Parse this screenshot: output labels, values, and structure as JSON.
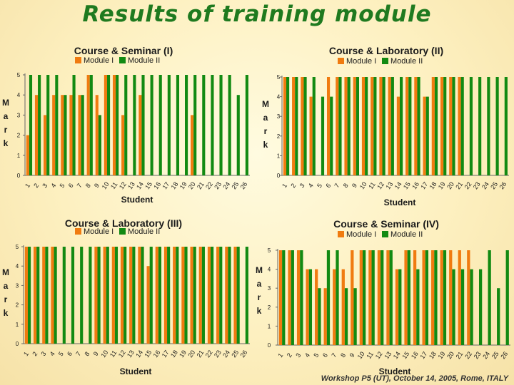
{
  "page": {
    "title": "Results of training module",
    "footer": "Workshop P5 (UT), October 14, 2005, Rome, ITALY"
  },
  "colors": {
    "module1": "#f07b10",
    "module2": "#128a12",
    "axis": "#666666",
    "text": "#1a1a1a"
  },
  "chart_data": [
    {
      "type": "bar",
      "title": "Course & Seminar (I)",
      "xlabel": "Student",
      "ylabel": "M a r k",
      "ylim": [
        0,
        5
      ],
      "yticks": [
        0,
        1,
        2,
        3,
        4,
        5
      ],
      "categories": [
        "1",
        "2",
        "3",
        "4",
        "5",
        "6",
        "7",
        "8",
        "9",
        "10",
        "11",
        "12",
        "13",
        "14",
        "15",
        "16",
        "17",
        "18",
        "19",
        "20",
        "21",
        "22",
        "23",
        "24",
        "25",
        "26"
      ],
      "legend": "top",
      "series": [
        {
          "name": "Module I",
          "values": [
            2,
            4,
            3,
            4,
            4,
            4,
            4,
            5,
            4,
            5,
            5,
            3,
            0,
            4,
            0,
            0,
            0,
            0,
            0,
            3,
            0,
            0,
            0,
            0,
            0,
            0
          ]
        },
        {
          "name": "Module II",
          "values": [
            5,
            5,
            5,
            5,
            4,
            5,
            4,
            5,
            3,
            5,
            5,
            5,
            5,
            5,
            5,
            5,
            5,
            5,
            5,
            5,
            5,
            5,
            5,
            5,
            4,
            5
          ]
        }
      ]
    },
    {
      "type": "bar",
      "title": "Course & Laboratory (II)",
      "xlabel": "Student",
      "ylabel": "M a r k",
      "ylim": [
        0,
        5
      ],
      "yticks": [
        0,
        1,
        2,
        3,
        4,
        5
      ],
      "categories": [
        "1",
        "2",
        "3",
        "4",
        "5",
        "6",
        "7",
        "8",
        "9",
        "10",
        "11",
        "12",
        "13",
        "14",
        "15",
        "16",
        "17",
        "18",
        "19",
        "20",
        "21",
        "22",
        "23",
        "24",
        "25",
        "26"
      ],
      "legend": "top",
      "series": [
        {
          "name": "Module I",
          "values": [
            5,
            5,
            5,
            4,
            0,
            5,
            5,
            5,
            5,
            5,
            5,
            5,
            5,
            4,
            5,
            5,
            4,
            5,
            5,
            5,
            5,
            0,
            0,
            0,
            0,
            0
          ]
        },
        {
          "name": "Module II",
          "values": [
            5,
            5,
            5,
            5,
            4,
            4,
            5,
            5,
            5,
            5,
            5,
            5,
            5,
            5,
            5,
            5,
            4,
            5,
            5,
            5,
            5,
            5,
            5,
            5,
            5,
            5
          ]
        }
      ]
    },
    {
      "type": "bar",
      "title": "Course & Laboratory (III)",
      "xlabel": "Student",
      "ylabel": "M a r k",
      "ylim": [
        0,
        5
      ],
      "yticks": [
        0,
        1,
        2,
        3,
        4,
        5
      ],
      "categories": [
        "1",
        "2",
        "3",
        "4",
        "5",
        "6",
        "7",
        "8",
        "9",
        "10",
        "11",
        "12",
        "13",
        "14",
        "15",
        "16",
        "17",
        "18",
        "19",
        "20",
        "21",
        "22",
        "23",
        "24",
        "25",
        "26"
      ],
      "legend": "top",
      "series": [
        {
          "name": "Module I",
          "values": [
            5,
            5,
            5,
            5,
            0,
            0,
            0,
            0,
            5,
            5,
            5,
            5,
            5,
            5,
            4,
            5,
            5,
            5,
            5,
            5,
            5,
            5,
            5,
            5,
            5,
            0
          ]
        },
        {
          "name": "Module II",
          "values": [
            5,
            5,
            5,
            5,
            5,
            5,
            5,
            5,
            5,
            5,
            5,
            5,
            5,
            5,
            5,
            5,
            5,
            5,
            5,
            5,
            5,
            5,
            5,
            5,
            5,
            5
          ]
        }
      ]
    },
    {
      "type": "bar",
      "title": "Course & Seminar (IV)",
      "xlabel": "Student",
      "ylabel": "M a r k",
      "ylim": [
        0,
        5
      ],
      "yticks": [
        0,
        1,
        2,
        3,
        4,
        5
      ],
      "categories": [
        "1",
        "2",
        "3",
        "4",
        "5",
        "6",
        "7",
        "8",
        "9",
        "10",
        "11",
        "12",
        "13",
        "14",
        "15",
        "16",
        "17",
        "18",
        "19",
        "20",
        "21",
        "22",
        "23",
        "24",
        "25",
        "26"
      ],
      "legend": "top",
      "series": [
        {
          "name": "Module I",
          "values": [
            5,
            5,
            5,
            4,
            4,
            3,
            4,
            4,
            5,
            5,
            5,
            5,
            5,
            4,
            5,
            5,
            5,
            5,
            5,
            5,
            5,
            5,
            0,
            0,
            0,
            0
          ]
        },
        {
          "name": "Module II",
          "values": [
            5,
            5,
            5,
            4,
            3,
            5,
            5,
            3,
            3,
            5,
            5,
            5,
            5,
            4,
            5,
            4,
            5,
            5,
            5,
            4,
            4,
            4,
            4,
            5,
            3,
            5
          ]
        }
      ]
    }
  ]
}
